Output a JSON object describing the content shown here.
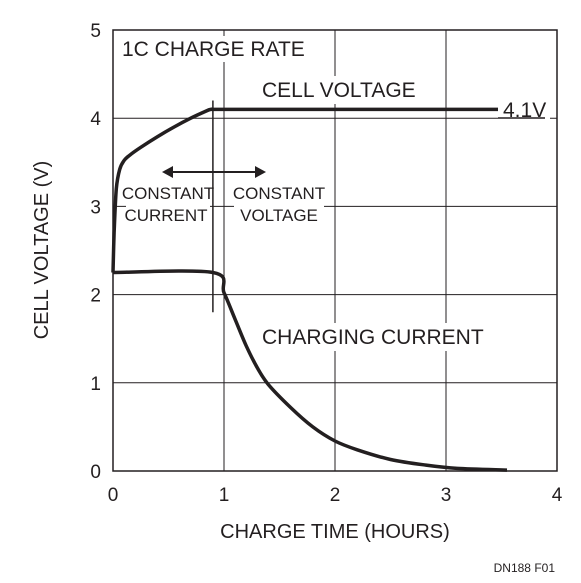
{
  "chart_data": {
    "type": "line",
    "title": "",
    "xlabel": "CHARGE TIME (HOURS)",
    "ylabel": "CELL VOLTAGE (V)",
    "xlim": [
      0,
      4
    ],
    "ylim": [
      0,
      5
    ],
    "xticks": [
      "0",
      "1",
      "2",
      "3",
      "4"
    ],
    "yticks": [
      "0",
      "1",
      "2",
      "3",
      "4",
      "5"
    ],
    "grid": true,
    "legend": "none",
    "series": [
      {
        "name": "CELL VOLTAGE",
        "x": [
          0,
          0.01,
          0.03,
          0.06,
          0.1,
          0.15,
          0.25,
          0.4,
          0.55,
          0.7,
          0.82,
          0.88,
          0.95,
          1.5,
          2.5,
          3.5
        ],
        "y": [
          2.25,
          2.7,
          3.2,
          3.42,
          3.52,
          3.58,
          3.67,
          3.79,
          3.9,
          4.0,
          4.07,
          4.1,
          4.1,
          4.1,
          4.1,
          4.1
        ]
      },
      {
        "name": "CHARGING CURRENT",
        "x": [
          0,
          0.9,
          1.0,
          1.1,
          1.2,
          1.3,
          1.4,
          1.6,
          1.8,
          2.0,
          2.2,
          2.5,
          2.8,
          3.1,
          3.55
        ],
        "y": [
          2.25,
          2.25,
          2.02,
          1.72,
          1.42,
          1.17,
          0.98,
          0.72,
          0.5,
          0.34,
          0.24,
          0.13,
          0.07,
          0.03,
          0.01
        ]
      }
    ],
    "annotations": {
      "rate": "1C CHARGE RATE",
      "voltage_label": "CELL VOLTAGE",
      "voltage_value": "4.1V",
      "current_label": "CHARGING CURRENT",
      "cc_line1": "CONSTANT",
      "cc_line2": "CURRENT",
      "cv_line1": "CONSTANT",
      "cv_line2": "VOLTAGE"
    },
    "phase_boundary_x": 0.9
  },
  "figure_id": "DN188 F01"
}
